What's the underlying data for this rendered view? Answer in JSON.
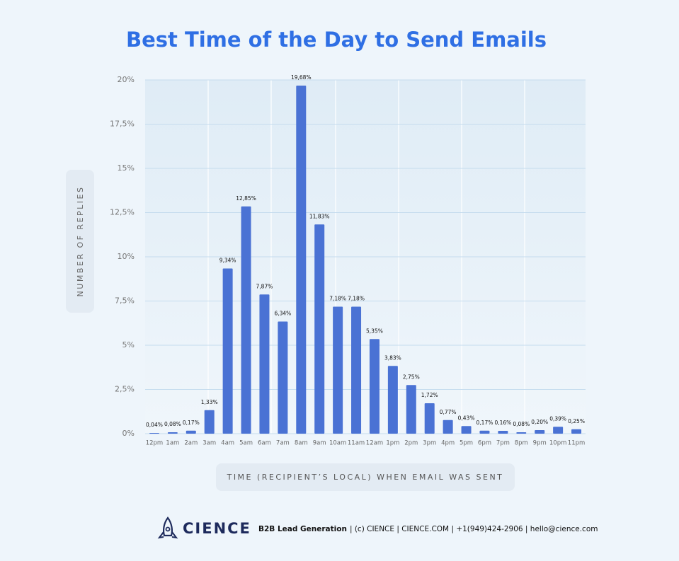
{
  "chart_data": {
    "type": "bar",
    "title": "Best Time of the Day to Send Emails",
    "y_label": "NUMBER OF REPLIES",
    "x_label": "TIME (RECIPIENT’S LOCAL) WHEN EMAIL WAS SENT",
    "categories": [
      "12pm",
      "1am",
      "2am",
      "3am",
      "4am",
      "5am",
      "6am",
      "7am",
      "8am",
      "9am",
      "10am",
      "11am",
      "12am",
      "1pm",
      "2pm",
      "3pm",
      "4pm",
      "5pm",
      "6pm",
      "7pm",
      "8pm",
      "9pm",
      "10pm",
      "11pm"
    ],
    "values": [
      0.04,
      0.08,
      0.17,
      1.33,
      9.34,
      12.85,
      7.87,
      6.34,
      19.68,
      11.83,
      7.18,
      7.18,
      5.35,
      3.83,
      2.75,
      1.72,
      0.77,
      0.43,
      0.17,
      0.16,
      0.08,
      0.2,
      0.39,
      0.25
    ],
    "value_labels": [
      "0,04%",
      "0,08%",
      "0,17%",
      "1,33%",
      "9,34%",
      "12,85%",
      "7,87%",
      "6,34%",
      "19,68%",
      "11,83%",
      "7,18%",
      "7,18%",
      "5,35%",
      "3,83%",
      "2,75%",
      "1,72%",
      "0,77%",
      "0,43%",
      "0,17%",
      "0,16%",
      "0,08%",
      "0,20%",
      "0,39%",
      "0,25%"
    ],
    "color": "#4a72d4",
    "ylim": [
      0,
      20
    ],
    "yticks": [
      {
        "value": 0,
        "label": "0%"
      },
      {
        "value": 2.5,
        "label": "2,5%"
      },
      {
        "value": 5,
        "label": "5%"
      },
      {
        "value": 7.5,
        "label": "7,5%"
      },
      {
        "value": 10,
        "label": "10%"
      },
      {
        "value": 12.5,
        "label": "12,5%"
      },
      {
        "value": 15,
        "label": "15%"
      },
      {
        "value": 17.5,
        "label": "17,5%"
      },
      {
        "value": 20,
        "label": "20%"
      }
    ],
    "grid": true
  },
  "footer": {
    "brand": "CIENCE",
    "tagline": "B2B Lead Generation",
    "details": "| (c) CIENCE | CIENCE.COM | +1(949)424-2906 | hello@cience.com"
  }
}
